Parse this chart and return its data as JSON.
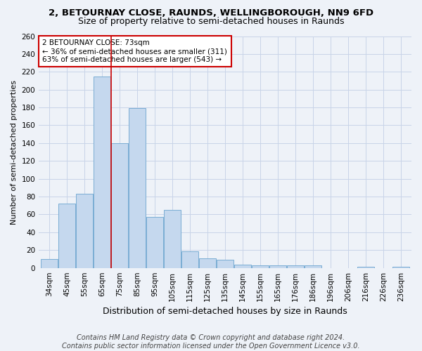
{
  "title_line1": "2, BETOURNAY CLOSE, RAUNDS, WELLINGBOROUGH, NN9 6FD",
  "title_line2": "Size of property relative to semi-detached houses in Raunds",
  "xlabel": "Distribution of semi-detached houses by size in Raunds",
  "ylabel": "Number of semi-detached properties",
  "categories": [
    "34sqm",
    "45sqm",
    "55sqm",
    "65sqm",
    "75sqm",
    "85sqm",
    "95sqm",
    "105sqm",
    "115sqm",
    "125sqm",
    "135sqm",
    "145sqm",
    "155sqm",
    "165sqm",
    "176sqm",
    "186sqm",
    "196sqm",
    "206sqm",
    "216sqm",
    "226sqm",
    "236sqm"
  ],
  "values": [
    10,
    72,
    83,
    215,
    140,
    179,
    57,
    65,
    19,
    11,
    9,
    4,
    3,
    3,
    3,
    3,
    0,
    0,
    1,
    0,
    1
  ],
  "bar_color": "#c5d8ee",
  "bar_edge_color": "#7aadd4",
  "highlight_bar_index": 3,
  "highlight_color": "#cc0000",
  "annotation_text": "2 BETOURNAY CLOSE: 73sqm\n← 36% of semi-detached houses are smaller (311)\n63% of semi-detached houses are larger (543) →",
  "annotation_box_color": "#ffffff",
  "annotation_box_edge_color": "#cc0000",
  "ylim": [
    0,
    260
  ],
  "yticks": [
    0,
    20,
    40,
    60,
    80,
    100,
    120,
    140,
    160,
    180,
    200,
    220,
    240,
    260
  ],
  "footer_line1": "Contains HM Land Registry data © Crown copyright and database right 2024.",
  "footer_line2": "Contains public sector information licensed under the Open Government Licence v3.0.",
  "background_color": "#eef2f8",
  "grid_color": "#c8d4e8",
  "title_fontsize": 9.5,
  "subtitle_fontsize": 9,
  "ylabel_fontsize": 8,
  "xlabel_fontsize": 9,
  "tick_fontsize": 7.5,
  "annotation_fontsize": 7.5,
  "footer_fontsize": 7
}
